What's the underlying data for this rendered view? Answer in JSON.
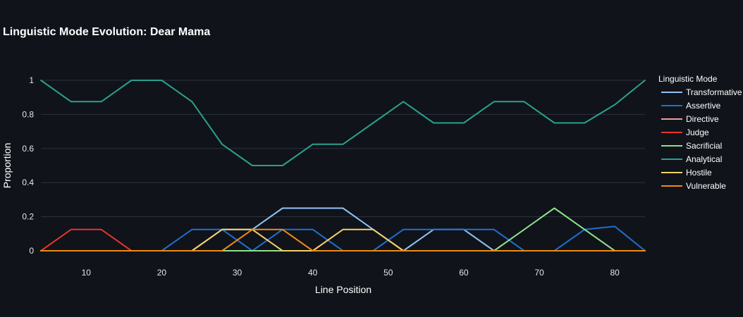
{
  "chart_data": {
    "type": "line",
    "title": "Linguistic Mode Evolution: Dear Mama",
    "xlabel": "Line Position",
    "ylabel": "Proportion",
    "xlim": [
      4,
      84
    ],
    "ylim": [
      0,
      1
    ],
    "xticks": [
      10,
      20,
      30,
      40,
      50,
      60,
      70,
      80
    ],
    "xtick_labels": [
      "10",
      "20",
      "30",
      "40",
      "50",
      "60",
      "70",
      "80"
    ],
    "yticks": [
      0,
      0.2,
      0.4,
      0.6,
      0.8,
      1
    ],
    "ytick_labels": [
      "0",
      "0.2",
      "0.4",
      "0.6",
      "0.8",
      "1"
    ],
    "grid": true,
    "legend_title": "Linguistic Mode",
    "legend_position": "right",
    "x": [
      4,
      8,
      12,
      16,
      20,
      24,
      28,
      32,
      36,
      40,
      44,
      48,
      52,
      56,
      60,
      64,
      68,
      72,
      76,
      80,
      84
    ],
    "series": [
      {
        "name": "Transformative",
        "color": "#8fc3f5",
        "values": [
          0,
          0,
          0,
          0,
          0,
          0,
          0.125,
          0.125,
          0.25,
          0.25,
          0.25,
          0.125,
          0,
          0.125,
          0.125,
          0,
          0,
          0,
          0,
          0,
          0
        ]
      },
      {
        "name": "Assertive",
        "color": "#1e6fd0",
        "values": [
          0,
          0,
          0,
          0,
          0,
          0.125,
          0.125,
          0,
          0.125,
          0.125,
          0,
          0,
          0.125,
          0.125,
          0.125,
          0.125,
          0,
          0,
          0.125,
          0.143,
          0
        ]
      },
      {
        "name": "Directive",
        "color": "#f29b9b",
        "values": [
          0,
          0,
          0,
          0,
          0,
          0,
          0,
          0,
          0,
          0,
          0,
          0,
          0,
          0,
          0,
          0,
          0,
          0,
          0,
          0,
          0
        ]
      },
      {
        "name": "Judge",
        "color": "#e5332f",
        "values": [
          0,
          0.125,
          0.125,
          0,
          0,
          0,
          0,
          0,
          0,
          0,
          0,
          0,
          0,
          0,
          0,
          0,
          0,
          0,
          0,
          0,
          0
        ]
      },
      {
        "name": "Sacrificial",
        "color": "#8fe28a",
        "values": [
          0,
          0,
          0,
          0,
          0,
          0,
          0,
          0,
          0,
          0,
          0,
          0,
          0,
          0,
          0,
          0,
          0.125,
          0.25,
          0.125,
          0,
          0
        ]
      },
      {
        "name": "Analytical",
        "color": "#2aa18e",
        "values": [
          1,
          0.875,
          0.875,
          1,
          1,
          0.875,
          0.625,
          0.5,
          0.5,
          0.625,
          0.625,
          0.75,
          0.875,
          0.75,
          0.75,
          0.875,
          0.875,
          0.75,
          0.75,
          0.857,
          1
        ]
      },
      {
        "name": "Hostile",
        "color": "#f4cf6a",
        "values": [
          0,
          0,
          0,
          0,
          0,
          0,
          0.125,
          0.125,
          0,
          0,
          0.125,
          0.125,
          0,
          0,
          0,
          0,
          0,
          0,
          0,
          0,
          0
        ]
      },
      {
        "name": "Vulnerable",
        "color": "#f08a12",
        "values": [
          0,
          0,
          0,
          0,
          0,
          0,
          0,
          0.125,
          0.125,
          0,
          0,
          0,
          0,
          0,
          0,
          0,
          0,
          0,
          0,
          0,
          0
        ]
      }
    ]
  }
}
